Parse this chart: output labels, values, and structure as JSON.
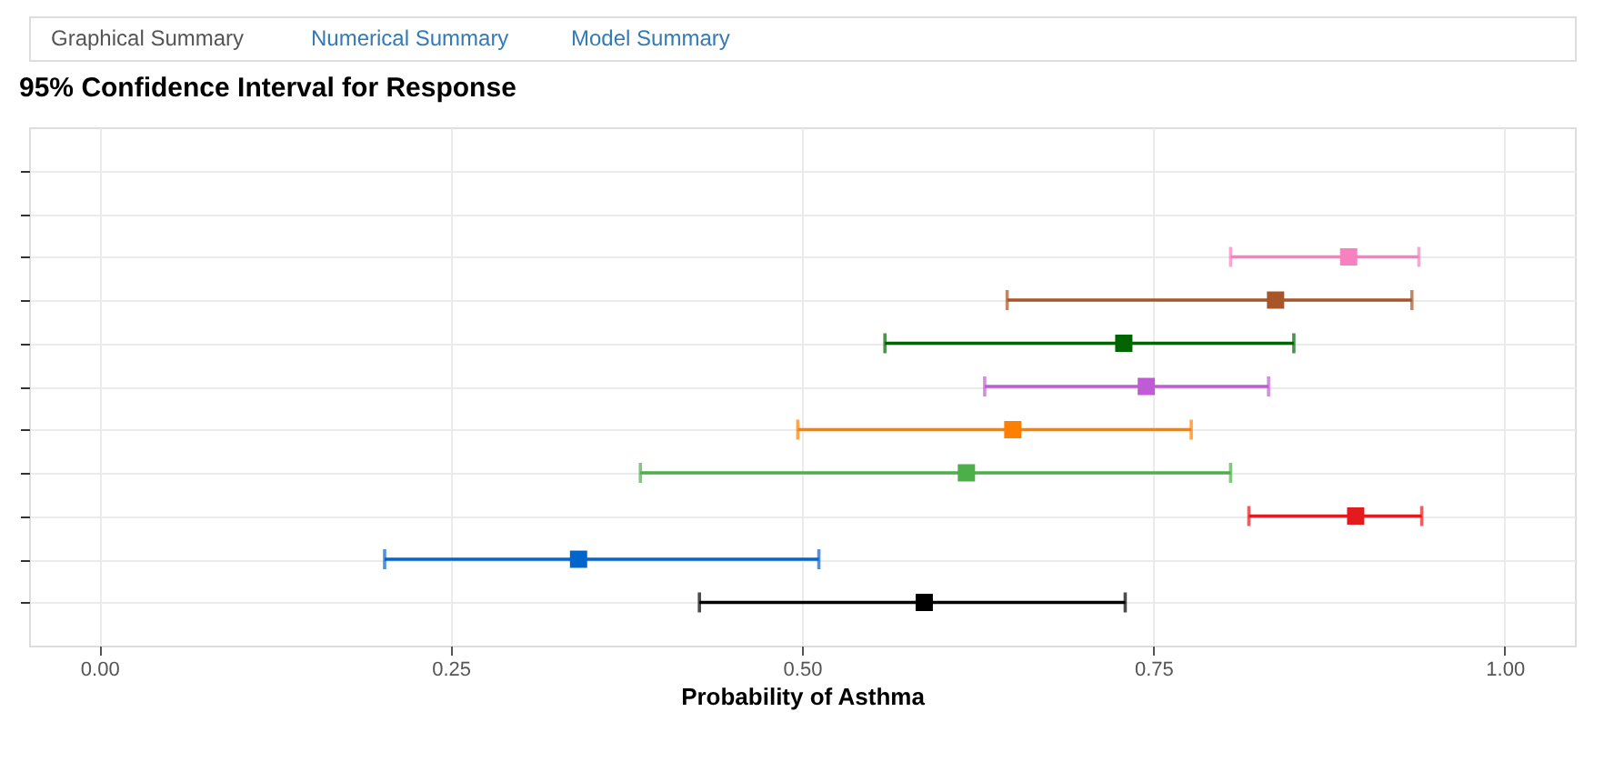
{
  "chart_data": {
    "type": "scatter",
    "orientation": "horizontal",
    "title": "95% Confidence Interval for Response",
    "xlabel": "Probability of Asthma",
    "annotations": [
      "Graphical Summary",
      "Numerical Summary",
      "Model Summary"
    ],
    "xlim": [
      -0.05,
      1.05
    ],
    "xticks": [
      {
        "value": 0,
        "label": "0.00"
      },
      {
        "value": 0.25,
        "label": "0.25"
      },
      {
        "value": 0.5,
        "label": "0.50"
      },
      {
        "value": 0.75,
        "label": "0.75"
      },
      {
        "value": 1,
        "label": "1.00"
      }
    ],
    "tick_labels": "x",
    "grid": true,
    "legend": false,
    "marker": "square",
    "line_style": "solid",
    "categories": [
      null,
      null,
      null,
      null,
      null,
      null,
      null,
      null,
      null,
      null,
      null
    ],
    "values": [
      null,
      null,
      0.889,
      0.837,
      0.729,
      0.745,
      0.65,
      0.617,
      0.894,
      0.341,
      0.587
    ],
    "errors": [
      null,
      null,
      [
        0.805,
        0.939
      ],
      [
        0.646,
        0.934
      ],
      [
        0.559,
        0.85
      ],
      [
        0.63,
        0.832
      ],
      [
        0.497,
        0.777
      ],
      [
        0.385,
        0.805
      ],
      [
        0.818,
        0.941
      ],
      [
        0.203,
        0.512
      ],
      [
        0.427,
        0.73
      ]
    ],
    "colors": [
      "#999999",
      "#999999",
      "#f781bf",
      "#a65628",
      "#006400",
      "#c05bd6",
      "#ff7f00",
      "#4daf4a",
      "#e41a1c",
      "#0066cc",
      "#000000"
    ]
  }
}
